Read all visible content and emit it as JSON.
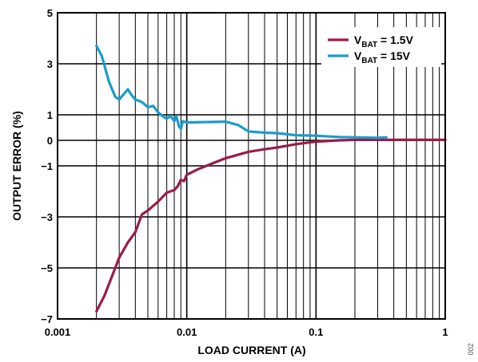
{
  "chart_data": {
    "type": "line",
    "title": "",
    "xlabel": "LOAD CURRENT (A)",
    "ylabel": "OUTPUT ERROR (%)",
    "xscale": "log",
    "xlim": [
      0.001,
      1
    ],
    "ylim": [
      -7,
      5
    ],
    "x_ticks": [
      0.001,
      0.01,
      0.1,
      1
    ],
    "x_tick_labels": [
      "0.001",
      "0.01",
      "0.1",
      "1"
    ],
    "y_ticks": [
      5,
      3,
      1,
      0,
      -1,
      -3,
      -5,
      -7
    ],
    "y_tick_labels": [
      "5",
      "3",
      "1",
      "0",
      "−1",
      "−3",
      "−5",
      "−7"
    ],
    "grid": true,
    "legend_position": "top-right",
    "series": [
      {
        "name": "V_BAT = 1.5V",
        "name_main": "V",
        "name_sub": "BAT",
        "name_rest": " = 1.5V",
        "color": "#9b1b4a",
        "points": [
          [
            0.002,
            -6.7
          ],
          [
            0.0023,
            -6.1
          ],
          [
            0.0027,
            -5.2
          ],
          [
            0.003,
            -4.6
          ],
          [
            0.0035,
            -4.0
          ],
          [
            0.004,
            -3.6
          ],
          [
            0.0045,
            -2.9
          ],
          [
            0.005,
            -2.75
          ],
          [
            0.006,
            -2.4
          ],
          [
            0.007,
            -2.05
          ],
          [
            0.008,
            -1.95
          ],
          [
            0.0085,
            -1.8
          ],
          [
            0.009,
            -1.55
          ],
          [
            0.0095,
            -1.6
          ],
          [
            0.01,
            -1.35
          ],
          [
            0.012,
            -1.15
          ],
          [
            0.015,
            -0.95
          ],
          [
            0.02,
            -0.7
          ],
          [
            0.03,
            -0.45
          ],
          [
            0.04,
            -0.35
          ],
          [
            0.05,
            -0.28
          ],
          [
            0.07,
            -0.15
          ],
          [
            0.1,
            -0.05
          ],
          [
            0.15,
            0.0
          ],
          [
            0.2,
            0.02
          ],
          [
            0.3,
            0.02
          ],
          [
            0.5,
            0.02
          ],
          [
            0.7,
            0.02
          ],
          [
            1.0,
            0.02
          ]
        ]
      },
      {
        "name": "V_BAT = 15V",
        "name_main": "V",
        "name_sub": "BAT",
        "name_rest": " = 15V",
        "color": "#1a9ccc",
        "points": [
          [
            0.002,
            3.7
          ],
          [
            0.0022,
            3.3
          ],
          [
            0.0025,
            2.3
          ],
          [
            0.0028,
            1.7
          ],
          [
            0.003,
            1.6
          ],
          [
            0.0033,
            1.85
          ],
          [
            0.0035,
            2.0
          ],
          [
            0.0037,
            1.8
          ],
          [
            0.004,
            1.6
          ],
          [
            0.0045,
            1.5
          ],
          [
            0.005,
            1.3
          ],
          [
            0.0055,
            1.35
          ],
          [
            0.006,
            1.1
          ],
          [
            0.0065,
            0.95
          ],
          [
            0.007,
            0.85
          ],
          [
            0.0075,
            0.95
          ],
          [
            0.008,
            0.75
          ],
          [
            0.0083,
            0.95
          ],
          [
            0.0087,
            0.55
          ],
          [
            0.009,
            0.45
          ],
          [
            0.0093,
            0.75
          ],
          [
            0.01,
            0.7
          ],
          [
            0.015,
            0.72
          ],
          [
            0.02,
            0.73
          ],
          [
            0.025,
            0.6
          ],
          [
            0.03,
            0.35
          ],
          [
            0.04,
            0.3
          ],
          [
            0.05,
            0.28
          ],
          [
            0.07,
            0.2
          ],
          [
            0.1,
            0.18
          ],
          [
            0.15,
            0.13
          ],
          [
            0.2,
            0.12
          ],
          [
            0.3,
            0.1
          ],
          [
            0.35,
            0.12
          ]
        ]
      }
    ]
  },
  "figure_id": "002"
}
